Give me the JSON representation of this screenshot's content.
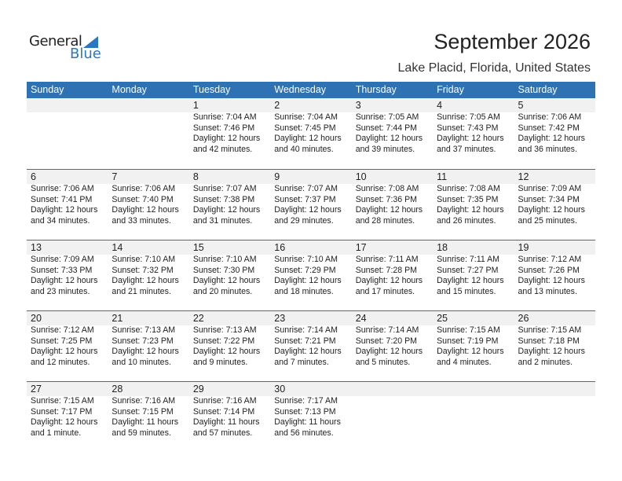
{
  "logo": {
    "general": "General",
    "blue": "Blue"
  },
  "header": {
    "title": "September 2026",
    "location": "Lake Placid, Florida, United States"
  },
  "colors": {
    "accent": "#2e72b4",
    "band": "#f1f1f1"
  },
  "weekdays": [
    "Sunday",
    "Monday",
    "Tuesday",
    "Wednesday",
    "Thursday",
    "Friday",
    "Saturday"
  ],
  "weeks": [
    [
      null,
      null,
      {
        "date": "1",
        "sunrise": "Sunrise: 7:04 AM",
        "sunset": "Sunset: 7:46 PM",
        "daylight": "Daylight: 12 hours",
        "minutes": "and 42 minutes."
      },
      {
        "date": "2",
        "sunrise": "Sunrise: 7:04 AM",
        "sunset": "Sunset: 7:45 PM",
        "daylight": "Daylight: 12 hours",
        "minutes": "and 40 minutes."
      },
      {
        "date": "3",
        "sunrise": "Sunrise: 7:05 AM",
        "sunset": "Sunset: 7:44 PM",
        "daylight": "Daylight: 12 hours",
        "minutes": "and 39 minutes."
      },
      {
        "date": "4",
        "sunrise": "Sunrise: 7:05 AM",
        "sunset": "Sunset: 7:43 PM",
        "daylight": "Daylight: 12 hours",
        "minutes": "and 37 minutes."
      },
      {
        "date": "5",
        "sunrise": "Sunrise: 7:06 AM",
        "sunset": "Sunset: 7:42 PM",
        "daylight": "Daylight: 12 hours",
        "minutes": "and 36 minutes."
      }
    ],
    [
      {
        "date": "6",
        "sunrise": "Sunrise: 7:06 AM",
        "sunset": "Sunset: 7:41 PM",
        "daylight": "Daylight: 12 hours",
        "minutes": "and 34 minutes."
      },
      {
        "date": "7",
        "sunrise": "Sunrise: 7:06 AM",
        "sunset": "Sunset: 7:40 PM",
        "daylight": "Daylight: 12 hours",
        "minutes": "and 33 minutes."
      },
      {
        "date": "8",
        "sunrise": "Sunrise: 7:07 AM",
        "sunset": "Sunset: 7:38 PM",
        "daylight": "Daylight: 12 hours",
        "minutes": "and 31 minutes."
      },
      {
        "date": "9",
        "sunrise": "Sunrise: 7:07 AM",
        "sunset": "Sunset: 7:37 PM",
        "daylight": "Daylight: 12 hours",
        "minutes": "and 29 minutes."
      },
      {
        "date": "10",
        "sunrise": "Sunrise: 7:08 AM",
        "sunset": "Sunset: 7:36 PM",
        "daylight": "Daylight: 12 hours",
        "minutes": "and 28 minutes."
      },
      {
        "date": "11",
        "sunrise": "Sunrise: 7:08 AM",
        "sunset": "Sunset: 7:35 PM",
        "daylight": "Daylight: 12 hours",
        "minutes": "and 26 minutes."
      },
      {
        "date": "12",
        "sunrise": "Sunrise: 7:09 AM",
        "sunset": "Sunset: 7:34 PM",
        "daylight": "Daylight: 12 hours",
        "minutes": "and 25 minutes."
      }
    ],
    [
      {
        "date": "13",
        "sunrise": "Sunrise: 7:09 AM",
        "sunset": "Sunset: 7:33 PM",
        "daylight": "Daylight: 12 hours",
        "minutes": "and 23 minutes."
      },
      {
        "date": "14",
        "sunrise": "Sunrise: 7:10 AM",
        "sunset": "Sunset: 7:32 PM",
        "daylight": "Daylight: 12 hours",
        "minutes": "and 21 minutes."
      },
      {
        "date": "15",
        "sunrise": "Sunrise: 7:10 AM",
        "sunset": "Sunset: 7:30 PM",
        "daylight": "Daylight: 12 hours",
        "minutes": "and 20 minutes."
      },
      {
        "date": "16",
        "sunrise": "Sunrise: 7:10 AM",
        "sunset": "Sunset: 7:29 PM",
        "daylight": "Daylight: 12 hours",
        "minutes": "and 18 minutes."
      },
      {
        "date": "17",
        "sunrise": "Sunrise: 7:11 AM",
        "sunset": "Sunset: 7:28 PM",
        "daylight": "Daylight: 12 hours",
        "minutes": "and 17 minutes."
      },
      {
        "date": "18",
        "sunrise": "Sunrise: 7:11 AM",
        "sunset": "Sunset: 7:27 PM",
        "daylight": "Daylight: 12 hours",
        "minutes": "and 15 minutes."
      },
      {
        "date": "19",
        "sunrise": "Sunrise: 7:12 AM",
        "sunset": "Sunset: 7:26 PM",
        "daylight": "Daylight: 12 hours",
        "minutes": "and 13 minutes."
      }
    ],
    [
      {
        "date": "20",
        "sunrise": "Sunrise: 7:12 AM",
        "sunset": "Sunset: 7:25 PM",
        "daylight": "Daylight: 12 hours",
        "minutes": "and 12 minutes."
      },
      {
        "date": "21",
        "sunrise": "Sunrise: 7:13 AM",
        "sunset": "Sunset: 7:23 PM",
        "daylight": "Daylight: 12 hours",
        "minutes": "and 10 minutes."
      },
      {
        "date": "22",
        "sunrise": "Sunrise: 7:13 AM",
        "sunset": "Sunset: 7:22 PM",
        "daylight": "Daylight: 12 hours",
        "minutes": "and 9 minutes."
      },
      {
        "date": "23",
        "sunrise": "Sunrise: 7:14 AM",
        "sunset": "Sunset: 7:21 PM",
        "daylight": "Daylight: 12 hours",
        "minutes": "and 7 minutes."
      },
      {
        "date": "24",
        "sunrise": "Sunrise: 7:14 AM",
        "sunset": "Sunset: 7:20 PM",
        "daylight": "Daylight: 12 hours",
        "minutes": "and 5 minutes."
      },
      {
        "date": "25",
        "sunrise": "Sunrise: 7:15 AM",
        "sunset": "Sunset: 7:19 PM",
        "daylight": "Daylight: 12 hours",
        "minutes": "and 4 minutes."
      },
      {
        "date": "26",
        "sunrise": "Sunrise: 7:15 AM",
        "sunset": "Sunset: 7:18 PM",
        "daylight": "Daylight: 12 hours",
        "minutes": "and 2 minutes."
      }
    ],
    [
      {
        "date": "27",
        "sunrise": "Sunrise: 7:15 AM",
        "sunset": "Sunset: 7:17 PM",
        "daylight": "Daylight: 12 hours",
        "minutes": "and 1 minute."
      },
      {
        "date": "28",
        "sunrise": "Sunrise: 7:16 AM",
        "sunset": "Sunset: 7:15 PM",
        "daylight": "Daylight: 11 hours",
        "minutes": "and 59 minutes."
      },
      {
        "date": "29",
        "sunrise": "Sunrise: 7:16 AM",
        "sunset": "Sunset: 7:14 PM",
        "daylight": "Daylight: 11 hours",
        "minutes": "and 57 minutes."
      },
      {
        "date": "30",
        "sunrise": "Sunrise: 7:17 AM",
        "sunset": "Sunset: 7:13 PM",
        "daylight": "Daylight: 11 hours",
        "minutes": "and 56 minutes."
      },
      null,
      null,
      null
    ]
  ]
}
